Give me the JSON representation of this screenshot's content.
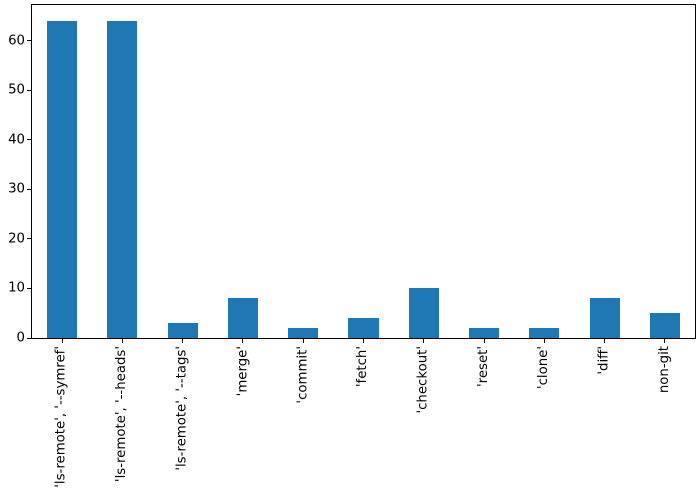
{
  "figure": {
    "background_color": "#ffffff",
    "axis_line_color": "#000000",
    "tick_label_color": "#000000"
  },
  "chart_data": {
    "type": "bar",
    "title": "",
    "xlabel": "",
    "ylabel": "",
    "categories": [
      "'ls-remote', '--symref'",
      "'ls-remote', '--heads'",
      "'ls-remote', '--tags'",
      "'merge'",
      "'commit'",
      "'fetch'",
      "'checkout'",
      "'reset'",
      "'clone'",
      "'diff'",
      "non-git"
    ],
    "values": [
      64,
      64,
      3,
      8,
      2,
      4,
      10,
      2,
      2,
      8,
      5
    ],
    "bar_color": "#1f77b4",
    "bar_width_fraction": 0.5,
    "ylim": [
      0,
      67.2
    ],
    "yticks": [
      0,
      10,
      20,
      30,
      40,
      50,
      60
    ],
    "x_tick_rotation_degrees": 90,
    "grid": false,
    "legend_position": "none"
  }
}
